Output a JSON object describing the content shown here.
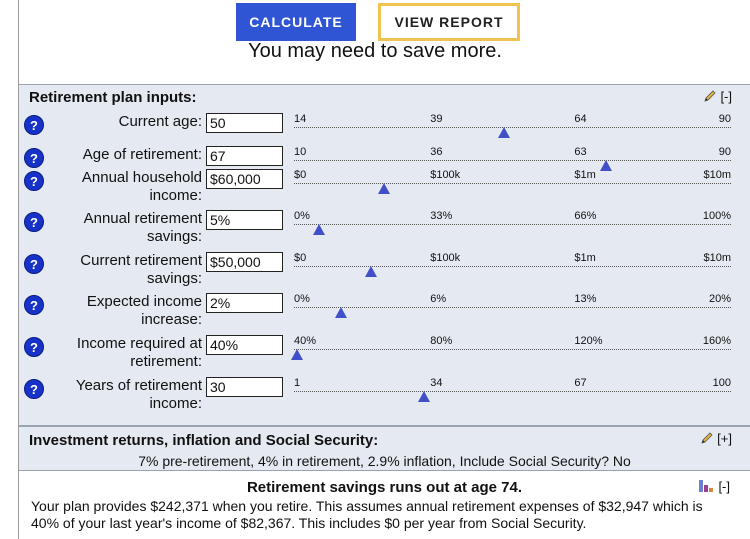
{
  "buttons": {
    "calculate": "CALCULATE",
    "view_report": "VIEW REPORT"
  },
  "headline": "You may need to save more.",
  "inputs_panel": {
    "title": "Retirement plan inputs:",
    "toggle": "[-]",
    "rows": [
      {
        "help": "?",
        "label": "Current age:",
        "value": "50",
        "ticks": [
          "14",
          "39",
          "64",
          "90"
        ],
        "level": 0.473
      },
      {
        "help": "?",
        "label": "Age of retirement:",
        "value": "67",
        "ticks": [
          "10",
          "36",
          "63",
          "90"
        ],
        "level": 0.707
      },
      {
        "help": "?",
        "label": "Annual household income:",
        "value": "$60,000",
        "ticks": [
          "$0",
          "$100k",
          "$1m",
          "$10m"
        ],
        "level": 0.2
      },
      {
        "help": "?",
        "label": "Annual retirement savings:",
        "value": "5%",
        "ticks": [
          "0%",
          "33%",
          "66%",
          "100%"
        ],
        "level": 0.05
      },
      {
        "help": "?",
        "label": "Current retirement savings:",
        "value": "$50,000",
        "ticks": [
          "$0",
          "$100k",
          "$1m",
          "$10m"
        ],
        "level": 0.17
      },
      {
        "help": "?",
        "label": "Expected income increase:",
        "value": "2%",
        "ticks": [
          "0%",
          "6%",
          "13%",
          "20%"
        ],
        "level": 0.1
      },
      {
        "help": "?",
        "label": "Income required at retirement:",
        "value": "40%",
        "ticks": [
          "40%",
          "80%",
          "120%",
          "160%"
        ],
        "level": 0.0
      },
      {
        "help": "?",
        "label": "Years of retirement income:",
        "value": "30",
        "ticks": [
          "1",
          "34",
          "67",
          "100"
        ],
        "level": 0.29
      }
    ]
  },
  "invest_panel": {
    "title": "Investment returns, inflation and Social Security:",
    "toggle": "[+]",
    "summary": "7% pre-retirement, 4% in retirement, 2.9% inflation, Include Social Security? No"
  },
  "results": {
    "title": "Retirement savings runs out at age 74.",
    "toggle": "[-]",
    "text": "Your plan provides $242,371 when you retire. This assumes annual retirement expenses of $32,947 which is 40% of your last year's income of $82,367. This includes $0 per year from Social Security."
  },
  "colors": {
    "accent": "#2f55d4",
    "report_border": "#f0c350",
    "panel_bg": "#e5eaf2",
    "thumb": "#4150c8"
  },
  "icons": {
    "edit": "pencil-icon",
    "chart": "bar-chart-icon",
    "help": "help-icon"
  }
}
